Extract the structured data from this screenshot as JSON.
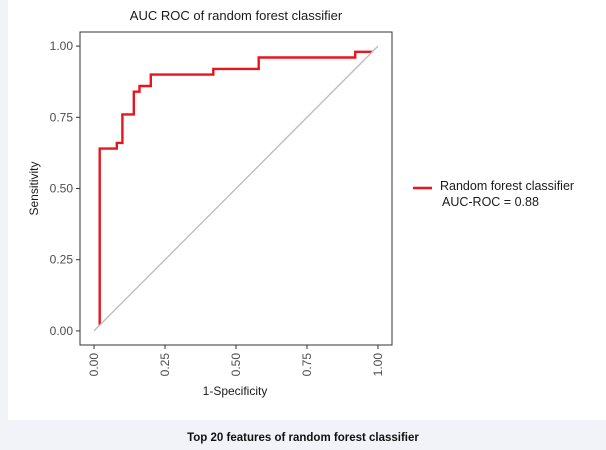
{
  "chart_data": {
    "type": "line",
    "title": "AUC ROC of random forest classifier",
    "xlabel": "1-Specificity",
    "ylabel": "Sensitivity",
    "xlim": [
      0,
      1
    ],
    "ylim": [
      0,
      1
    ],
    "x_ticks": [
      "0.00",
      "0.25",
      "0.50",
      "0.75",
      "1.00"
    ],
    "y_ticks": [
      "0.00",
      "0.25",
      "0.50",
      "0.75",
      "1.00"
    ],
    "grid": false,
    "legend_position": "right",
    "series": [
      {
        "name": "Random forest classifier",
        "color": "#e8141e",
        "x": [
          0.02,
          0.02,
          0.02,
          0.08,
          0.08,
          0.1,
          0.1,
          0.14,
          0.14,
          0.16,
          0.16,
          0.2,
          0.2,
          0.42,
          0.42,
          0.58,
          0.58,
          0.92,
          0.92,
          0.98,
          0.98,
          0.98
        ],
        "y": [
          0.02,
          0.02,
          0.64,
          0.64,
          0.66,
          0.66,
          0.76,
          0.76,
          0.84,
          0.84,
          0.86,
          0.86,
          0.9,
          0.9,
          0.92,
          0.92,
          0.96,
          0.96,
          0.98,
          0.98,
          0.98,
          0.98
        ]
      },
      {
        "name": "",
        "role": "reference-diagonal",
        "color": "#bdbdbd",
        "x": [
          0,
          1
        ],
        "y": [
          0,
          1
        ]
      }
    ],
    "legend": {
      "label": "Random forest classifier",
      "sublabel": "AUC-ROC = 0.88",
      "auc": 0.88
    }
  },
  "footer": {
    "title": "Top 20 features of random forest classifier"
  }
}
